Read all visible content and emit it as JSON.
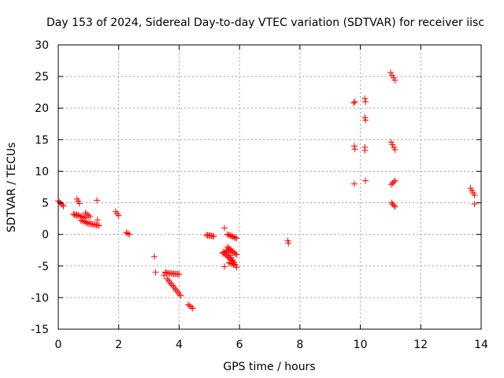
{
  "chart_data": {
    "type": "scatter",
    "title": "Day 153 of 2024, Sidereal Day-to-day VTEC variation (SDTVAR) for receiver iisc",
    "xlabel": "GPS time / hours",
    "ylabel": "SDTVAR / TECUs",
    "xlim": [
      0,
      14
    ],
    "ylim": [
      -15,
      30
    ],
    "xticks": [
      0,
      2,
      4,
      6,
      8,
      10,
      12,
      14
    ],
    "yticks": [
      -15,
      -10,
      -5,
      0,
      5,
      10,
      15,
      20,
      25,
      30
    ],
    "grid": true,
    "marker": "+",
    "color": "#ff0000",
    "series": [
      {
        "name": "SDTVAR",
        "segments": [
          {
            "x": [
              0.0,
              0.17
            ],
            "y": [
              5.3,
              4.5
            ]
          },
          {
            "x": [
              0.5,
              0.62
            ],
            "y": [
              3.2,
              3.0
            ]
          },
          {
            "x": [
              0.62,
              0.7
            ],
            "y": [
              5.6,
              4.9
            ]
          },
          {
            "x": [
              0.62,
              0.9
            ],
            "y": [
              3.1,
              2.6
            ]
          },
          {
            "x": [
              0.75,
              0.95
            ],
            "y": [
              2.2,
              1.9
            ]
          },
          {
            "x": [
              0.9,
              1.05
            ],
            "y": [
              3.4,
              2.8
            ]
          },
          {
            "x": [
              0.95,
              1.35
            ],
            "y": [
              1.8,
              1.4
            ]
          },
          {
            "x": [
              1.9,
              2.0
            ],
            "y": [
              3.6,
              3.0
            ]
          },
          {
            "x": [
              2.25,
              2.35
            ],
            "y": [
              0.3,
              0.0
            ]
          },
          {
            "x": [
              3.18,
              3.22
            ],
            "y": [
              -3.5,
              -6.0
            ]
          },
          {
            "x": [
              3.5,
              3.55
            ],
            "y": [
              -6.5,
              -6.0
            ]
          },
          {
            "x": [
              3.55,
              4.0
            ],
            "y": [
              -6.1,
              -6.3
            ]
          },
          {
            "x": [
              3.6,
              4.05
            ],
            "y": [
              -7.0,
              -9.7
            ]
          },
          {
            "x": [
              4.3,
              4.45
            ],
            "y": [
              -11.1,
              -11.7
            ]
          },
          {
            "x": [
              4.9,
              5.15
            ],
            "y": [
              -0.1,
              -0.3
            ]
          },
          {
            "x": [
              5.45,
              5.65
            ],
            "y": [
              -3.0,
              -2.4
            ]
          },
          {
            "x": [
              5.45,
              5.75
            ],
            "y": [
              -2.8,
              -4.2
            ]
          },
          {
            "x": [
              5.65,
              5.9
            ],
            "y": [
              -3.0,
              -5.2
            ]
          },
          {
            "x": [
              5.6,
              5.9
            ],
            "y": [
              0.0,
              -0.6
            ]
          },
          {
            "x": [
              5.6,
              5.9
            ],
            "y": [
              -2.0,
              -3.2
            ]
          },
          {
            "x": [
              5.65,
              5.85
            ],
            "y": [
              -4.5,
              -4.8
            ]
          },
          {
            "x": [
              11.0,
              11.15
            ],
            "y": [
              25.6,
              24.4
            ]
          },
          {
            "x": [
              11.02,
              11.15
            ],
            "y": [
              14.6,
              13.4
            ]
          },
          {
            "x": [
              11.02,
              11.15
            ],
            "y": [
              7.9,
              8.5
            ]
          },
          {
            "x": [
              11.03,
              11.15
            ],
            "y": [
              5.0,
              4.4
            ]
          },
          {
            "x": [
              13.65,
              13.78
            ],
            "y": [
              7.3,
              6.2
            ]
          }
        ],
        "points": [
          {
            "x": 1.28,
            "y": 5.4
          },
          {
            "x": 1.3,
            "y": 2.3
          },
          {
            "x": 5.5,
            "y": 1.0
          },
          {
            "x": 5.5,
            "y": -5.1
          },
          {
            "x": 7.6,
            "y": -1.0
          },
          {
            "x": 7.62,
            "y": -1.4
          },
          {
            "x": 9.78,
            "y": 20.8
          },
          {
            "x": 9.82,
            "y": 21.0
          },
          {
            "x": 9.8,
            "y": 14.0
          },
          {
            "x": 9.82,
            "y": 13.5
          },
          {
            "x": 9.8,
            "y": 8.0
          },
          {
            "x": 10.15,
            "y": 21.5
          },
          {
            "x": 10.17,
            "y": 21.0
          },
          {
            "x": 10.15,
            "y": 18.5
          },
          {
            "x": 10.17,
            "y": 18.1
          },
          {
            "x": 10.15,
            "y": 13.8
          },
          {
            "x": 10.15,
            "y": 13.3
          },
          {
            "x": 10.17,
            "y": 8.5
          },
          {
            "x": 13.78,
            "y": 4.8
          }
        ]
      }
    ]
  }
}
